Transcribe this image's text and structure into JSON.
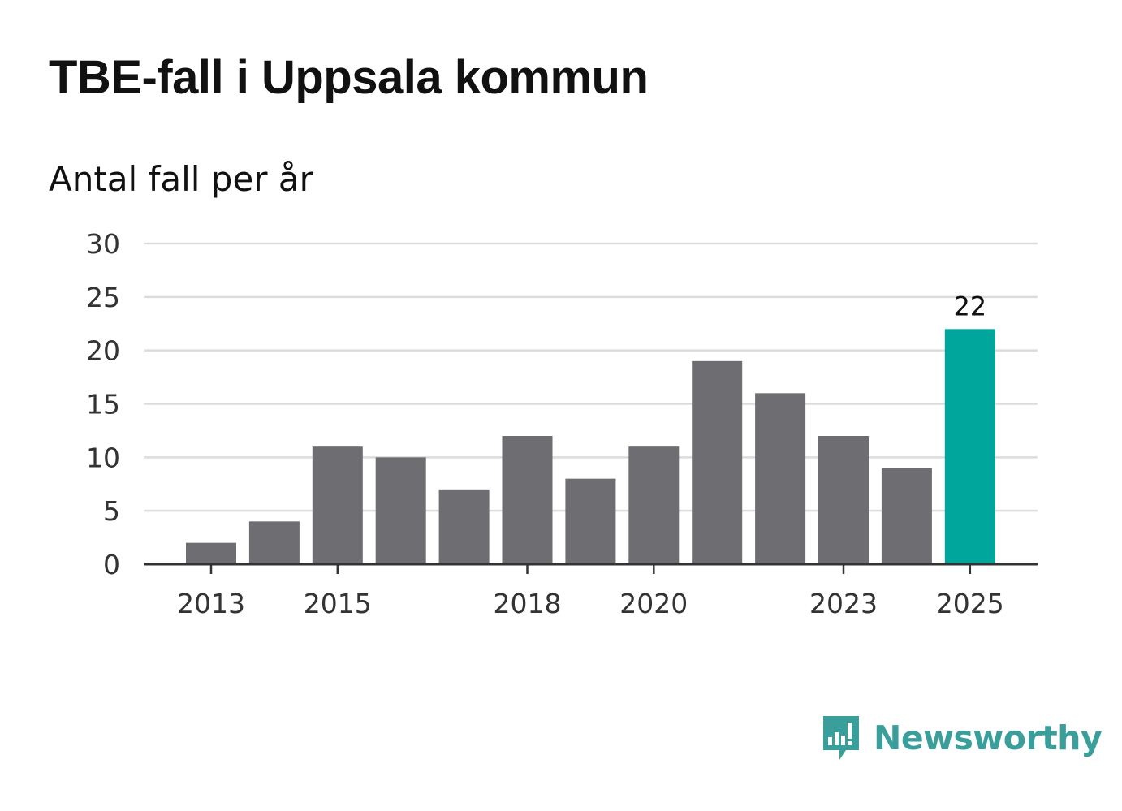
{
  "title": "TBE-fall i Uppsala kommun",
  "subtitle": "Antal fall per år",
  "brand": "Newsworthy",
  "colors": {
    "bar": "#6e6d72",
    "highlight": "#00a59b",
    "grid": "#dcdcdc",
    "axis": "#333333",
    "brand": "#3a9f9a"
  },
  "chart_data": {
    "type": "bar",
    "title": "TBE-fall i Uppsala kommun",
    "subtitle": "Antal fall per år",
    "xlabel": "",
    "ylabel": "",
    "categories": [
      "2013",
      "2014",
      "2015",
      "2016",
      "2017",
      "2018",
      "2019",
      "2020",
      "2021",
      "2022",
      "2023",
      "2024",
      "2025"
    ],
    "values": [
      2,
      4,
      11,
      10,
      7,
      12,
      8,
      11,
      19,
      16,
      12,
      9,
      22
    ],
    "x_tick_labels": [
      "2013",
      "2015",
      "2018",
      "2020",
      "2023",
      "2025"
    ],
    "y_ticks": [
      0,
      5,
      10,
      15,
      20,
      25,
      30
    ],
    "ylim": [
      0,
      30
    ],
    "grid": true,
    "highlight_index": 12,
    "data_labels": [
      {
        "index": 12,
        "text": "22"
      }
    ]
  }
}
